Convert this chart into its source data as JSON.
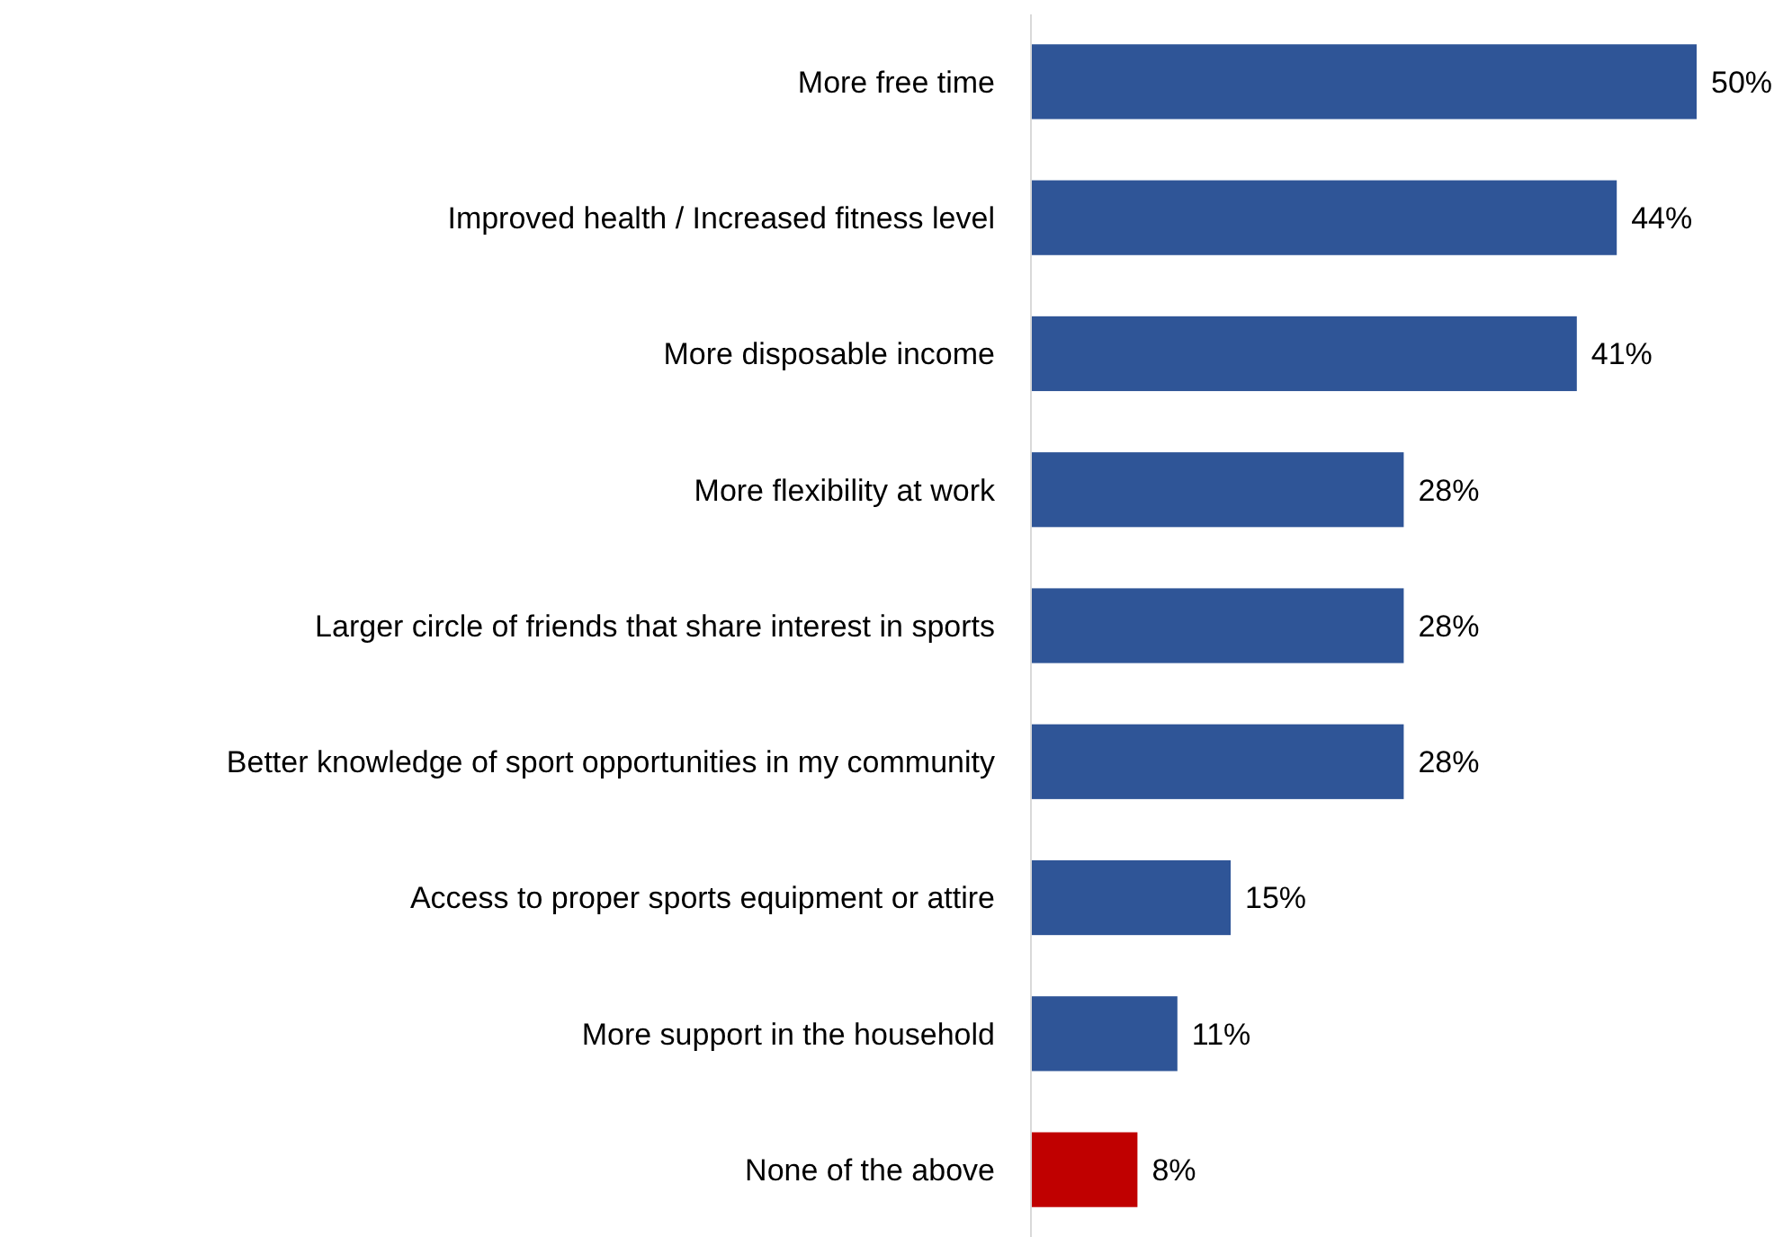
{
  "chart_data": {
    "type": "bar",
    "orientation": "horizontal",
    "categories": [
      "More free time",
      "Improved health / Increased fitness level",
      "More disposable income",
      "More flexibility at work",
      "Larger circle of friends that share interest in sports",
      "Better knowledge of sport opportunities in my community",
      "Access to proper sports equipment or attire",
      "More support in the household",
      "None of the above"
    ],
    "values": [
      50,
      44,
      41,
      28,
      28,
      28,
      15,
      11,
      8
    ],
    "colors": [
      "#2f5597",
      "#2f5597",
      "#2f5597",
      "#2f5597",
      "#2f5597",
      "#2f5597",
      "#2f5597",
      "#2f5597",
      "#c00000"
    ],
    "value_labels": [
      "50%",
      "44%",
      "41%",
      "28%",
      "28%",
      "28%",
      "15%",
      "11%",
      "8%"
    ]
  }
}
